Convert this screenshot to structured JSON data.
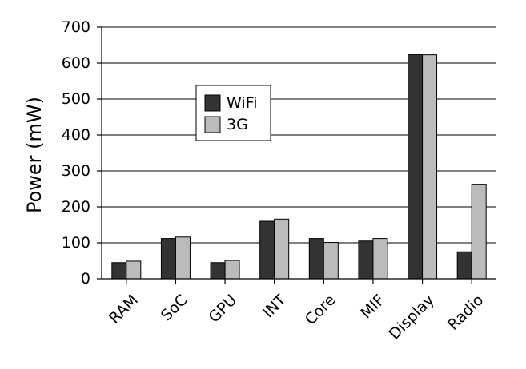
{
  "chart_data": {
    "type": "bar",
    "title": "",
    "xlabel": "",
    "ylabel": "Power (mW)",
    "categories": [
      "RAM",
      "SoC",
      "GPU",
      "INT",
      "Core",
      "MIF",
      "Display",
      "Radio"
    ],
    "series": [
      {
        "name": "WiFi",
        "color": "#333333",
        "values": [
          45,
          112,
          45,
          160,
          112,
          105,
          624,
          75
        ]
      },
      {
        "name": "3G",
        "color": "#bbbbbb",
        "values": [
          49,
          116,
          51,
          166,
          101,
          112,
          623,
          263
        ]
      }
    ],
    "ylim": [
      0,
      700
    ],
    "yticks": [
      0,
      100,
      200,
      300,
      400,
      500,
      600,
      700
    ],
    "grid": true,
    "legend_position": "upper-left"
  }
}
